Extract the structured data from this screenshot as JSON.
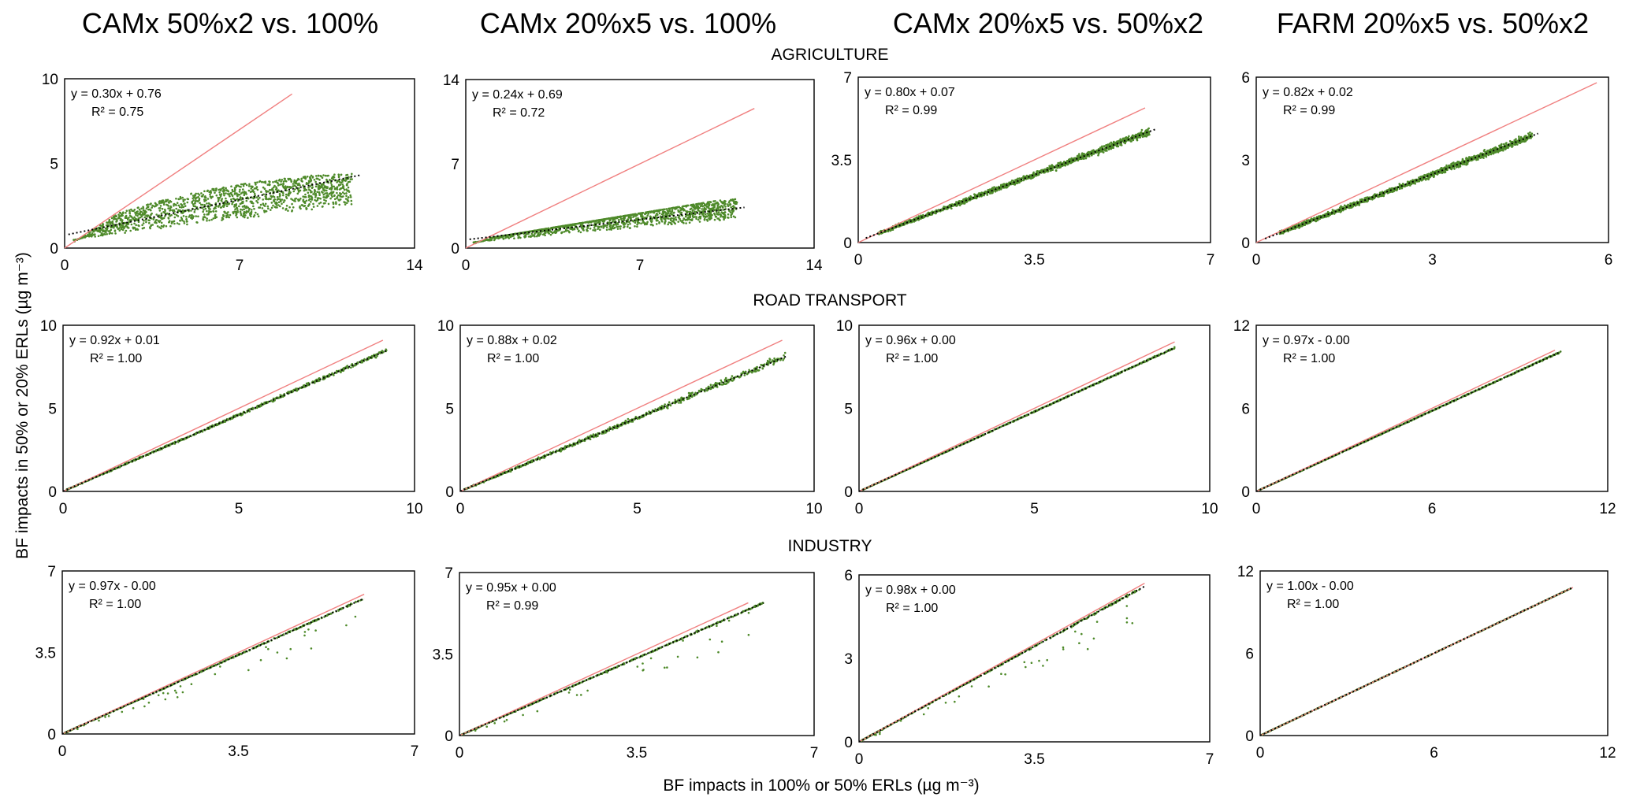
{
  "figure": {
    "column_titles": [
      "CAMx 50%x2 vs. 100%",
      "CAMx 20%x5 vs. 100%",
      "CAMx 20%x5 vs. 50%x2",
      "FARM 20%x5 vs. 50%x2"
    ],
    "row_titles": [
      "AGRICULTURE",
      "ROAD TRANSPORT",
      "INDUSTRY"
    ],
    "xlabel": "BF impacts in 100% or 50% ERLs (µg m⁻³)",
    "ylabel": "BF  impacts in 50% or 20% ERLs (µg m⁻³)",
    "colors": {
      "points": "#4e8a2a",
      "one_to_one": "#f08080",
      "trend": "#000000",
      "frame": "#000000"
    }
  },
  "chart_data": [
    {
      "id": "agriculture-camx-50x2-vs-100",
      "type": "scatter",
      "row": "AGRICULTURE",
      "title": "CAMx 50%x2 vs. 100%",
      "xlim": [
        0,
        14
      ],
      "ylim": [
        0,
        10
      ],
      "xticks": [
        "0",
        "7",
        "14"
      ],
      "yticks": [
        "0",
        "5",
        "10"
      ],
      "equation": "y = 0.30x + 0.76",
      "r2": "R² = 0.75",
      "slope": 0.3,
      "intercept": 0.76,
      "r2_value": 0.75,
      "x_max": 11.8,
      "one_to_one_max": 9.1
    },
    {
      "id": "agriculture-camx-20x5-vs-100",
      "type": "scatter",
      "row": "AGRICULTURE",
      "title": "CAMx 20%x5 vs. 100%",
      "xlim": [
        0,
        14
      ],
      "ylim": [
        0,
        14
      ],
      "xticks": [
        "0",
        "7",
        "14"
      ],
      "yticks": [
        "0",
        "7",
        "14"
      ],
      "equation": "y = 0.24x + 0.69",
      "r2": "R² = 0.72",
      "slope": 0.24,
      "intercept": 0.69,
      "r2_value": 0.72,
      "x_max": 11.2,
      "one_to_one_max": 11.6
    },
    {
      "id": "agriculture-camx-20x5-vs-50x2",
      "type": "scatter",
      "row": "AGRICULTURE",
      "title": "CAMx 20%x5 vs. 50%x2",
      "xlim": [
        0,
        7
      ],
      "ylim": [
        0,
        7
      ],
      "xticks": [
        "0",
        "3.5",
        "7"
      ],
      "yticks": [
        "0",
        "3.5",
        "7"
      ],
      "equation": "y = 0.80x + 0.07",
      "r2": "R² = 0.99",
      "slope": 0.8,
      "intercept": 0.07,
      "r2_value": 0.99,
      "x_max": 5.9,
      "one_to_one_max": 5.7
    },
    {
      "id": "agriculture-farm-20x5-vs-50x2",
      "type": "scatter",
      "row": "AGRICULTURE",
      "title": "FARM 20%x5 vs. 50%x2",
      "xlim": [
        0,
        6
      ],
      "ylim": [
        0,
        6
      ],
      "xticks": [
        "0",
        "3",
        "6"
      ],
      "yticks": [
        "0",
        "3",
        "6"
      ],
      "equation": "y = 0.82x + 0.02",
      "r2": "R² = 0.99",
      "slope": 0.82,
      "intercept": 0.02,
      "r2_value": 0.99,
      "x_max": 4.8,
      "one_to_one_max": 5.8
    },
    {
      "id": "road-camx-50x2-vs-100",
      "type": "scatter",
      "row": "ROAD TRANSPORT",
      "title": "CAMx 50%x2 vs. 100%",
      "xlim": [
        0,
        10
      ],
      "ylim": [
        0,
        10
      ],
      "xticks": [
        "0",
        "5",
        "10"
      ],
      "yticks": [
        "0",
        "5",
        "10"
      ],
      "equation": "y = 0.92x + 0.01",
      "r2": "R² = 1.00",
      "slope": 0.92,
      "intercept": 0.01,
      "r2_value": 1.0,
      "x_max": 9.2,
      "one_to_one_max": 9.1
    },
    {
      "id": "road-camx-20x5-vs-100",
      "type": "scatter",
      "row": "ROAD TRANSPORT",
      "title": "CAMx 20%x5 vs. 100%",
      "xlim": [
        0,
        10
      ],
      "ylim": [
        0,
        10
      ],
      "xticks": [
        "0",
        "5",
        "10"
      ],
      "yticks": [
        "0",
        "5",
        "10"
      ],
      "equation": "y = 0.88x + 0.02",
      "r2": "R² = 1.00",
      "slope": 0.88,
      "intercept": 0.02,
      "r2_value": 1.0,
      "x_max": 9.2,
      "one_to_one_max": 9.1
    },
    {
      "id": "road-camx-20x5-vs-50x2",
      "type": "scatter",
      "row": "ROAD TRANSPORT",
      "title": "CAMx 20%x5 vs. 50%x2",
      "xlim": [
        0,
        10
      ],
      "ylim": [
        0,
        10
      ],
      "xticks": [
        "0",
        "5",
        "10"
      ],
      "yticks": [
        "0",
        "5",
        "10"
      ],
      "equation": "y = 0.96x + 0.00",
      "r2": "R² = 1.00",
      "slope": 0.96,
      "intercept": 0.0,
      "r2_value": 1.0,
      "x_max": 9.0,
      "one_to_one_max": 9.0
    },
    {
      "id": "road-farm-20x5-vs-50x2",
      "type": "scatter",
      "row": "ROAD TRANSPORT",
      "title": "FARM 20%x5 vs. 50%x2",
      "xlim": [
        0,
        12
      ],
      "ylim": [
        0,
        12
      ],
      "xticks": [
        "0",
        "6",
        "12"
      ],
      "yticks": [
        "0",
        "6",
        "12"
      ],
      "equation": "y = 0.97x - 0.00",
      "r2": "R² = 1.00",
      "slope": 0.97,
      "intercept": 0.0,
      "r2_value": 1.0,
      "x_max": 10.4,
      "one_to_one_max": 10.2
    },
    {
      "id": "industry-camx-50x2-vs-100",
      "type": "scatter",
      "row": "INDUSTRY",
      "title": "CAMx 50%x2 vs. 100%",
      "xlim": [
        0,
        7
      ],
      "ylim": [
        0,
        7
      ],
      "xticks": [
        "0",
        "3.5",
        "7"
      ],
      "yticks": [
        "0",
        "3.5",
        "7"
      ],
      "equation": "y = 0.97x - 0.00",
      "r2": "R² = 1.00",
      "slope": 0.97,
      "intercept": 0.0,
      "r2_value": 1.0,
      "x_max": 6.0,
      "one_to_one_max": 6.0
    },
    {
      "id": "industry-camx-20x5-vs-100",
      "type": "scatter",
      "row": "INDUSTRY",
      "title": "CAMx 20%x5 vs. 100%",
      "xlim": [
        0,
        7
      ],
      "ylim": [
        0,
        7
      ],
      "xticks": [
        "0",
        "3.5",
        "7"
      ],
      "yticks": [
        "0",
        "3.5",
        "7"
      ],
      "equation": "y = 0.95x + 0.00",
      "r2": "R² = 0.99",
      "slope": 0.95,
      "intercept": 0.0,
      "r2_value": 0.99,
      "x_max": 6.0,
      "one_to_one_max": 5.7
    },
    {
      "id": "industry-camx-20x5-vs-50x2",
      "type": "scatter",
      "row": "INDUSTRY",
      "title": "CAMx 20%x5 vs. 50%x2",
      "xlim": [
        0,
        7
      ],
      "ylim": [
        0,
        6
      ],
      "xticks": [
        "0",
        "3.5",
        "7"
      ],
      "yticks": [
        "0",
        "3",
        "6"
      ],
      "equation": "y = 0.98x + 0.00",
      "r2": "R² = 1.00",
      "slope": 0.98,
      "intercept": 0.0,
      "r2_value": 1.0,
      "x_max": 5.7,
      "one_to_one_max": 5.7
    },
    {
      "id": "industry-farm-20x5-vs-50x2",
      "type": "scatter",
      "row": "INDUSTRY",
      "title": "FARM 20%x5 vs. 50%x2",
      "xlim": [
        0,
        12
      ],
      "ylim": [
        0,
        12
      ],
      "xticks": [
        "0",
        "6",
        "12"
      ],
      "yticks": [
        "0",
        "6",
        "12"
      ],
      "equation": "y = 1.00x - 0.00",
      "r2": "R² = 1.00",
      "slope": 1.0,
      "intercept": 0.0,
      "r2_value": 1.0,
      "x_max": 10.8,
      "one_to_one_max": 10.8
    }
  ]
}
